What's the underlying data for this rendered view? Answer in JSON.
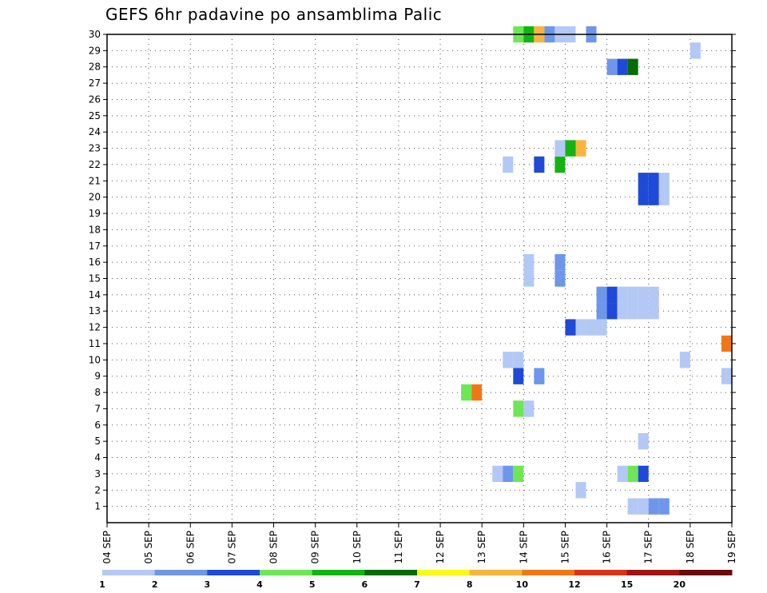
{
  "chart_data": {
    "type": "heatmap",
    "title": "GEFS 6hr padavine po ansamblima Palic",
    "xlabel": "",
    "ylabel": "",
    "x_tick_labels": [
      "04 SEP",
      "05 SEP",
      "06 SEP",
      "07 SEP",
      "08 SEP",
      "09 SEP",
      "10 SEP",
      "11 SEP",
      "12 SEP",
      "13 SEP",
      "14 SEP",
      "15 SEP",
      "16 SEP",
      "17 SEP",
      "18 SEP",
      "19 SEP"
    ],
    "y_tick_labels": [
      "1",
      "2",
      "3",
      "4",
      "5",
      "6",
      "7",
      "8",
      "9",
      "10",
      "11",
      "12",
      "13",
      "14",
      "15",
      "16",
      "17",
      "18",
      "19",
      "20",
      "21",
      "22",
      "23",
      "24",
      "25",
      "26",
      "27",
      "28",
      "29",
      "30"
    ],
    "xlim_days": [
      4,
      19
    ],
    "ylim_members": [
      0,
      30
    ],
    "grid": true,
    "grid_style": "dotted",
    "colorbar": {
      "position": "bottom",
      "colors": [
        "#b4c8f5",
        "#6e96ea",
        "#1f4ad8",
        "#6ee656",
        "#12b412",
        "#066c06",
        "#fafa14",
        "#fab43c",
        "#f07814",
        "#dc3214",
        "#a01414",
        "#6e0a0a"
      ],
      "labels": [
        "1",
        "2",
        "3",
        "4",
        "5",
        "6",
        "7",
        "8",
        "10",
        "12",
        "15",
        "20"
      ]
    },
    "cells": [
      {
        "member": 1,
        "day": 16.5,
        "level": 1
      },
      {
        "member": 1,
        "day": 16.75,
        "level": 1
      },
      {
        "member": 1,
        "day": 17.0,
        "level": 2
      },
      {
        "member": 1,
        "day": 17.25,
        "level": 2
      },
      {
        "member": 2,
        "day": 15.25,
        "level": 1
      },
      {
        "member": 3,
        "day": 13.25,
        "level": 1
      },
      {
        "member": 3,
        "day": 13.5,
        "level": 2
      },
      {
        "member": 3,
        "day": 13.75,
        "level": 4
      },
      {
        "member": 3,
        "day": 16.25,
        "level": 1
      },
      {
        "member": 3,
        "day": 16.5,
        "level": 4
      },
      {
        "member": 3,
        "day": 16.75,
        "level": 3
      },
      {
        "member": 5,
        "day": 16.75,
        "level": 1
      },
      {
        "member": 7,
        "day": 13.75,
        "level": 4
      },
      {
        "member": 7,
        "day": 14.0,
        "level": 1
      },
      {
        "member": 8,
        "day": 12.5,
        "level": 4
      },
      {
        "member": 8,
        "day": 12.75,
        "level": 9
      },
      {
        "member": 9,
        "day": 13.75,
        "level": 3
      },
      {
        "member": 9,
        "day": 14.25,
        "level": 2
      },
      {
        "member": 9,
        "day": 18.75,
        "level": 1
      },
      {
        "member": 10,
        "day": 13.5,
        "level": 1
      },
      {
        "member": 10,
        "day": 13.75,
        "level": 1
      },
      {
        "member": 10,
        "day": 17.75,
        "level": 1
      },
      {
        "member": 11,
        "day": 18.75,
        "level": 9
      },
      {
        "member": 12,
        "day": 15.0,
        "level": 3
      },
      {
        "member": 12,
        "day": 15.25,
        "level": 1
      },
      {
        "member": 12,
        "day": 15.5,
        "level": 1
      },
      {
        "member": 12,
        "day": 15.75,
        "level": 1
      },
      {
        "member": 13,
        "day": 15.75,
        "level": 2
      },
      {
        "member": 13,
        "day": 16.0,
        "level": 3
      },
      {
        "member": 13,
        "day": 16.25,
        "level": 1
      },
      {
        "member": 13,
        "day": 16.5,
        "level": 1
      },
      {
        "member": 13,
        "day": 16.75,
        "level": 1
      },
      {
        "member": 13,
        "day": 17.0,
        "level": 1
      },
      {
        "member": 14,
        "day": 15.75,
        "level": 2
      },
      {
        "member": 14,
        "day": 16.0,
        "level": 3
      },
      {
        "member": 14,
        "day": 16.25,
        "level": 1
      },
      {
        "member": 14,
        "day": 16.5,
        "level": 1
      },
      {
        "member": 14,
        "day": 16.75,
        "level": 1
      },
      {
        "member": 14,
        "day": 17.0,
        "level": 1
      },
      {
        "member": 15,
        "day": 14.0,
        "level": 1
      },
      {
        "member": 15,
        "day": 14.75,
        "level": 2
      },
      {
        "member": 16,
        "day": 14.0,
        "level": 1
      },
      {
        "member": 16,
        "day": 14.75,
        "level": 2
      },
      {
        "member": 20,
        "day": 16.75,
        "level": 3
      },
      {
        "member": 20,
        "day": 17.0,
        "level": 3
      },
      {
        "member": 20,
        "day": 17.25,
        "level": 1
      },
      {
        "member": 21,
        "day": 16.75,
        "level": 3
      },
      {
        "member": 21,
        "day": 17.0,
        "level": 3
      },
      {
        "member": 21,
        "day": 17.25,
        "level": 1
      },
      {
        "member": 22,
        "day": 13.5,
        "level": 1
      },
      {
        "member": 22,
        "day": 14.25,
        "level": 3
      },
      {
        "member": 22,
        "day": 14.75,
        "level": 5
      },
      {
        "member": 23,
        "day": 14.75,
        "level": 1
      },
      {
        "member": 23,
        "day": 15.0,
        "level": 5
      },
      {
        "member": 23,
        "day": 15.25,
        "level": 8
      },
      {
        "member": 28,
        "day": 16.0,
        "level": 2
      },
      {
        "member": 28,
        "day": 16.25,
        "level": 3
      },
      {
        "member": 28,
        "day": 16.5,
        "level": 6
      },
      {
        "member": 29,
        "day": 18.0,
        "level": 1
      },
      {
        "member": 30,
        "day": 13.75,
        "level": 4
      },
      {
        "member": 30,
        "day": 14.0,
        "level": 5
      },
      {
        "member": 30,
        "day": 14.25,
        "level": 8
      },
      {
        "member": 30,
        "day": 14.5,
        "level": 2
      },
      {
        "member": 30,
        "day": 14.75,
        "level": 1
      },
      {
        "member": 30,
        "day": 15.0,
        "level": 1
      },
      {
        "member": 30,
        "day": 15.5,
        "level": 2
      }
    ]
  }
}
